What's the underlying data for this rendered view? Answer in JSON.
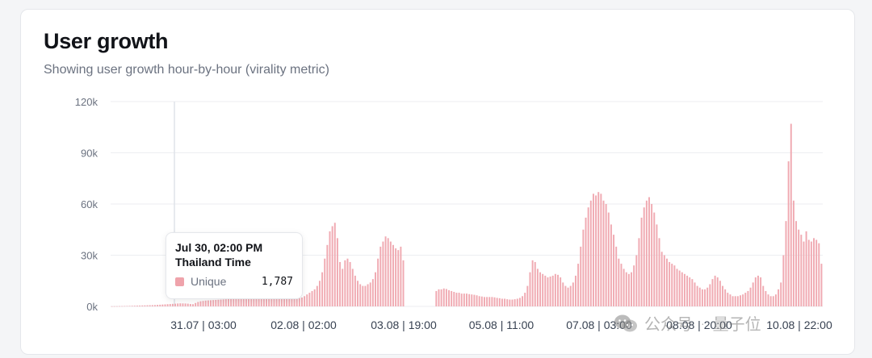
{
  "card": {
    "title": "User growth",
    "subtitle": "Showing user growth hour-by-hour (virality metric)"
  },
  "colors": {
    "bar": "#f0aab2",
    "grid": "#eceef1",
    "hover_line": "#dfe3ea",
    "swatch": "#efa3ab"
  },
  "chart_data": {
    "type": "bar",
    "title": "User growth",
    "subtitle": "Showing user growth hour-by-hour (virality metric)",
    "ylim": [
      0,
      120000
    ],
    "yticks": [
      0,
      30000,
      60000,
      90000,
      120000
    ],
    "ytick_labels": [
      "0k",
      "30k",
      "60k",
      "90k",
      "120k"
    ],
    "xtick_labels": [
      "31.07 | 03:00",
      "02.08 | 02:00",
      "03.08 | 19:00",
      "05.08 | 11:00",
      "07.08 | 03:00",
      "08.08 | 20:00",
      "10.08 | 22:00"
    ],
    "grid": true,
    "series": [
      {
        "name": "Unique",
        "values": [
          80,
          100,
          120,
          150,
          180,
          220,
          250,
          300,
          350,
          400,
          450,
          500,
          550,
          600,
          650,
          700,
          750,
          800,
          900,
          1000,
          1100,
          1200,
          1300,
          1400,
          1500,
          1600,
          1700,
          1787,
          1750,
          1700,
          1600,
          1400,
          1300,
          2000,
          2600,
          3000,
          3200,
          3400,
          3500,
          3600,
          3700,
          3800,
          3900,
          4000,
          4100,
          4200,
          4300,
          4400,
          4500,
          4500,
          4500,
          4500,
          4500,
          4500,
          4500,
          4500,
          4500,
          4500,
          4500,
          4500,
          4500,
          4500,
          4500,
          4500,
          4500,
          4500,
          4500,
          4500,
          4500,
          4500,
          4500,
          4500,
          4500,
          4600,
          4800,
          5200,
          6000,
          7000,
          8000,
          9000,
          10000,
          12000,
          15000,
          20000,
          28000,
          36000,
          44000,
          47000,
          49000,
          40000,
          26000,
          22000,
          27000,
          28000,
          26000,
          22000,
          18000,
          15000,
          13000,
          12000,
          12000,
          13000,
          14000,
          16000,
          20000,
          28000,
          35000,
          38000,
          41000,
          40000,
          38000,
          36000,
          34000,
          33000,
          35000,
          27000,
          0,
          0,
          0,
          0,
          0,
          0,
          0,
          0,
          0,
          0,
          0,
          0,
          9000,
          10000,
          10000,
          10500,
          10200,
          9500,
          9000,
          8500,
          8000,
          8000,
          7500,
          7500,
          7500,
          7200,
          7000,
          6800,
          6500,
          6000,
          5800,
          5500,
          5500,
          5500,
          5500,
          5300,
          5000,
          4800,
          4500,
          4500,
          4200,
          4000,
          4000,
          4200,
          4500,
          5000,
          6000,
          8000,
          12000,
          20000,
          27000,
          26000,
          22000,
          20000,
          19000,
          18000,
          17000,
          17500,
          18000,
          19000,
          18500,
          17000,
          14000,
          12000,
          11000,
          12000,
          14000,
          18000,
          25000,
          35000,
          45000,
          52000,
          58000,
          62000,
          66000,
          65000,
          67000,
          66000,
          62000,
          60000,
          55000,
          48000,
          42000,
          35000,
          28000,
          25000,
          22000,
          20000,
          19000,
          20000,
          24000,
          30000,
          40000,
          52000,
          58000,
          62000,
          64000,
          60000,
          55000,
          48000,
          40000,
          32000,
          30000,
          28000,
          26000,
          25000,
          24000,
          22000,
          21000,
          20000,
          19000,
          18000,
          17000,
          16000,
          14000,
          12000,
          11000,
          10000,
          10000,
          11000,
          13000,
          16000,
          18000,
          17000,
          15000,
          12000,
          10000,
          8000,
          7000,
          6000,
          6000,
          6000,
          6500,
          7000,
          8000,
          9000,
          11000,
          14000,
          17000,
          18000,
          17000,
          12000,
          9000,
          7000,
          6000,
          6000,
          7000,
          10000,
          14000,
          30000,
          50000,
          85000,
          107000,
          62000,
          50000,
          45000,
          42000,
          38000,
          44000,
          39000,
          38000,
          40000,
          39000,
          37000,
          25000
        ]
      }
    ],
    "tooltip": {
      "title_line1": "Jul 30, 02:00 PM",
      "title_line2": "Thailand Time",
      "series": "Unique",
      "value": "1,787"
    }
  },
  "watermark": {
    "text1": "公众号",
    "dot": "·",
    "text2": "量子位"
  }
}
